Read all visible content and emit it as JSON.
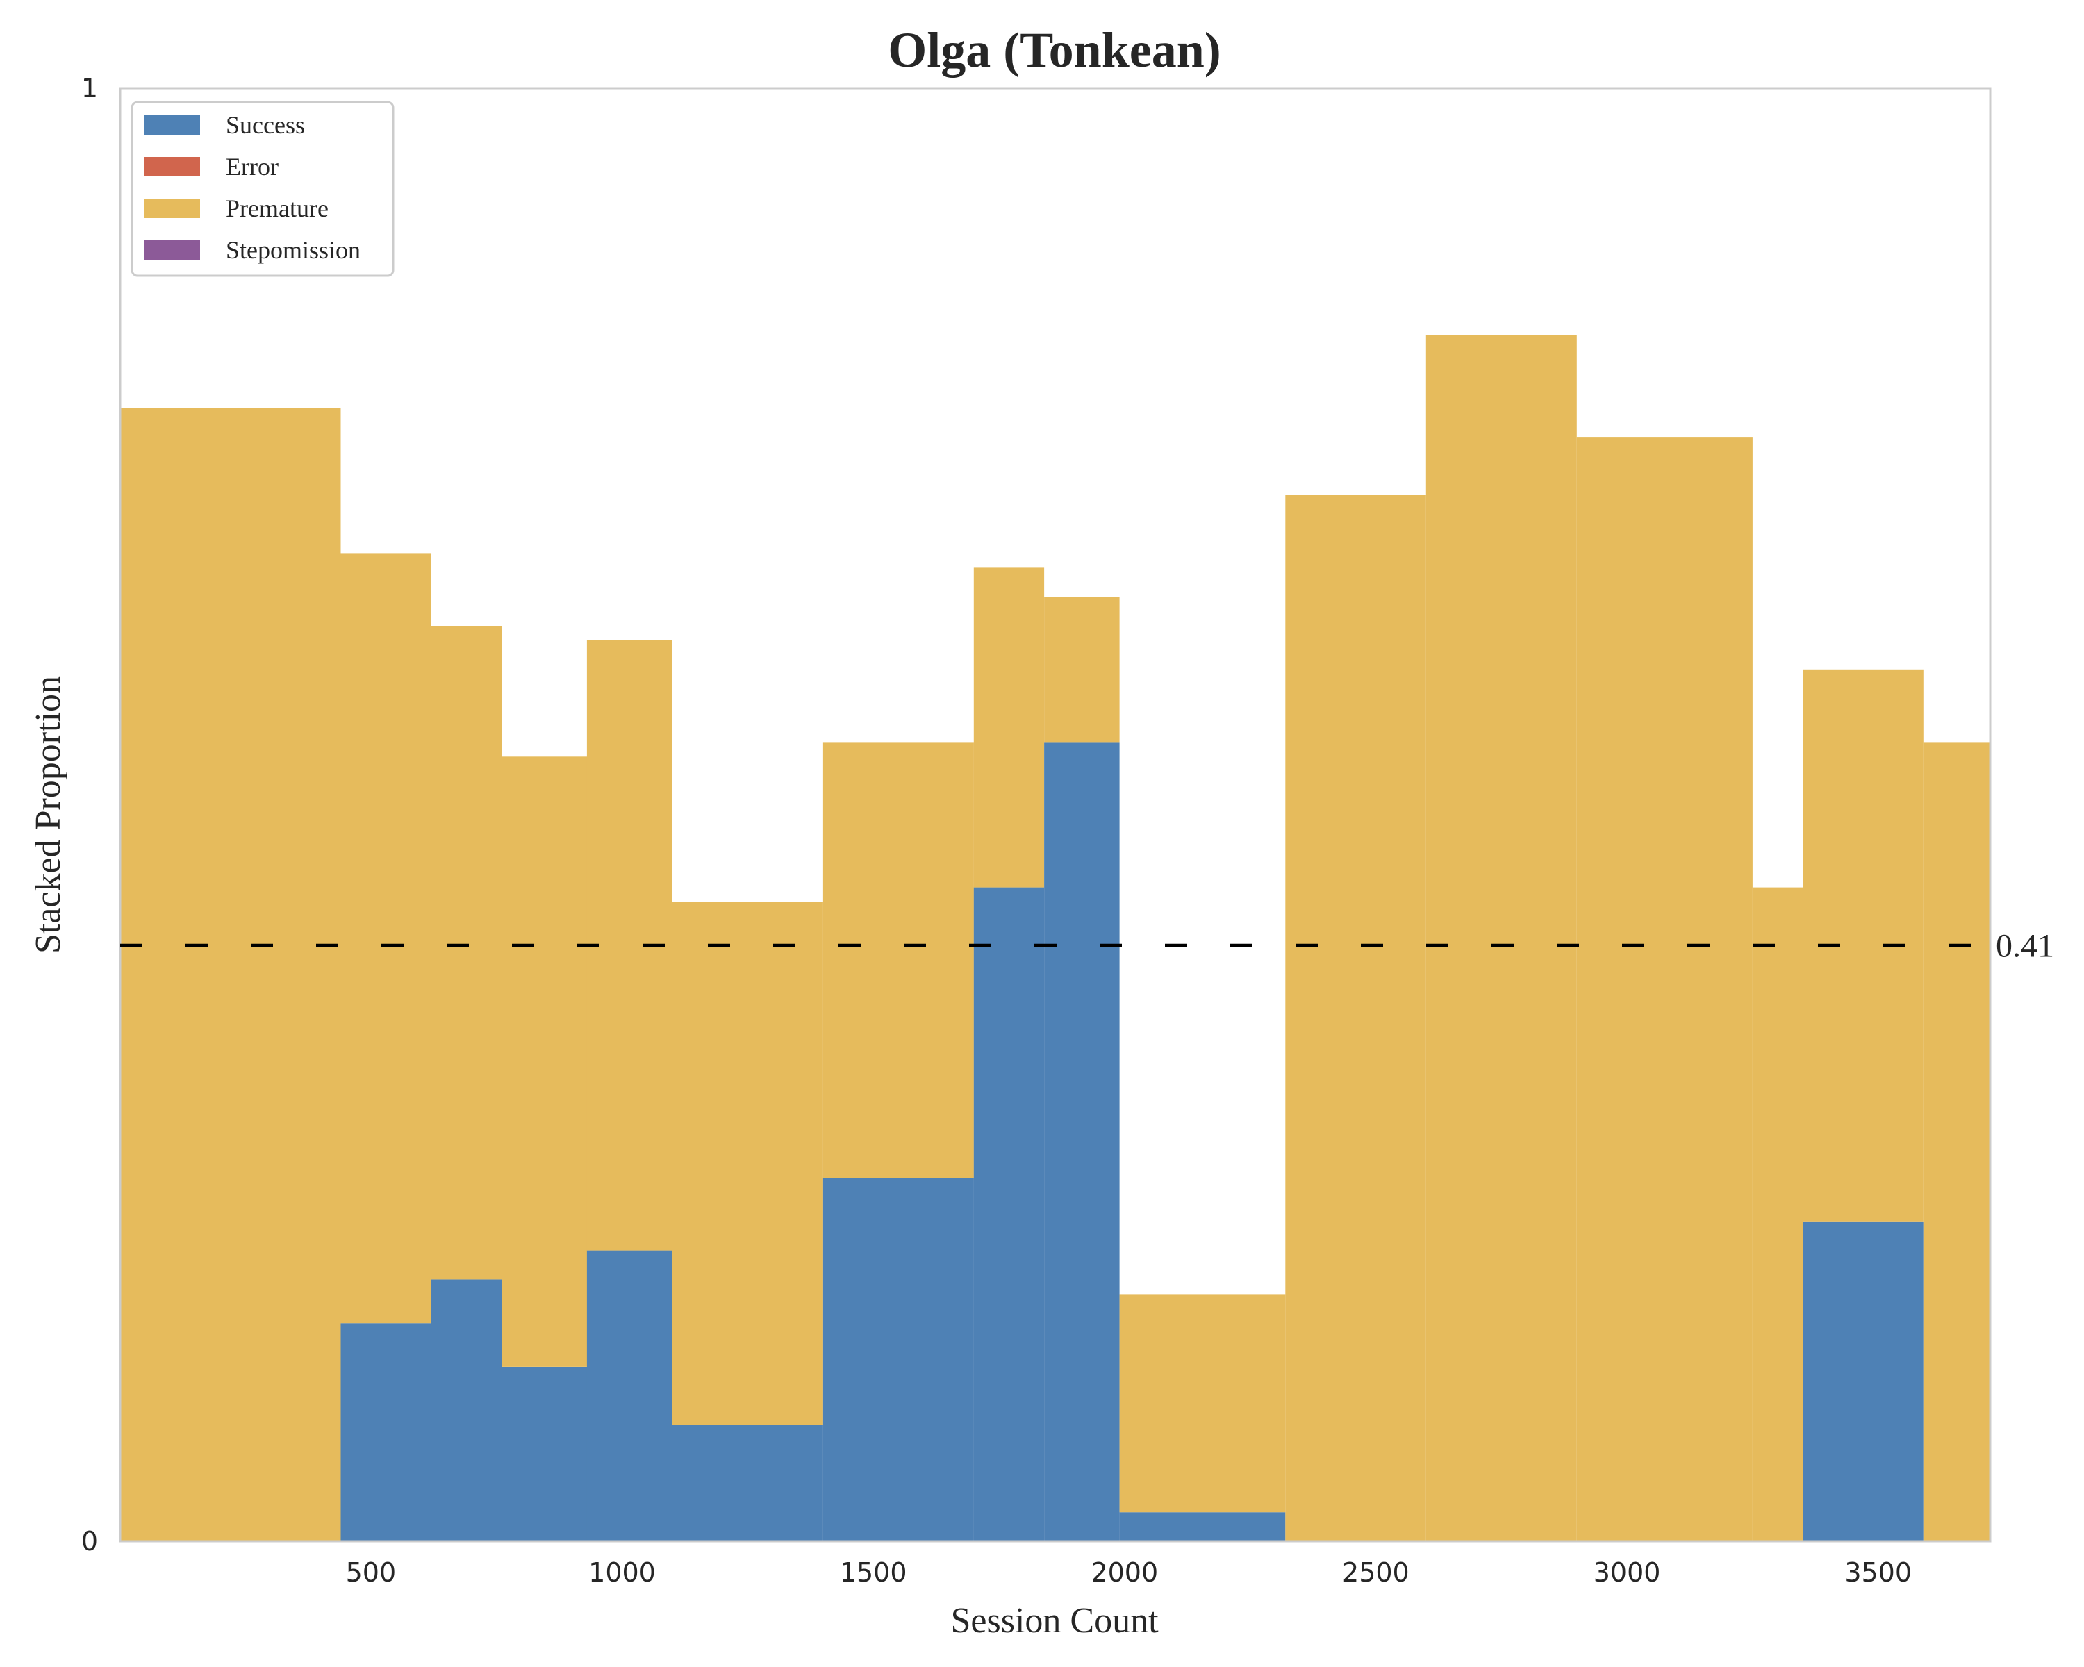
{
  "chart_data": {
    "type": "bar",
    "stacked": true,
    "title": "Olga (Tonkean)",
    "xlabel": "Session Count",
    "ylabel": "Stacked Proportion",
    "xlim": [
      1,
      3723
    ],
    "ylim": [
      0,
      1
    ],
    "x_ticks": [
      500,
      1000,
      1500,
      2000,
      2500,
      3000,
      3500
    ],
    "y_ticks": [
      {
        "value": 0,
        "label": "0"
      },
      {
        "value": 1,
        "label": "1"
      }
    ],
    "grid": false,
    "legend_position": "upper-left",
    "series": [
      {
        "name": "Success",
        "color": "#4e81b5"
      },
      {
        "name": "Error",
        "color": "#d1654d"
      },
      {
        "name": "Premature",
        "color": "#e6bb5c"
      },
      {
        "name": "Stepomission",
        "color": "#8c5a98"
      }
    ],
    "segments": [
      {
        "x_start": 1,
        "x_end": 440,
        "success": 0.0,
        "error": 0.0,
        "premature": 0.78
      },
      {
        "x_start": 440,
        "x_end": 620,
        "success": 0.15,
        "error": 0.0,
        "premature": 0.53
      },
      {
        "x_start": 620,
        "x_end": 760,
        "success": 0.18,
        "error": 0.0,
        "premature": 0.45
      },
      {
        "x_start": 760,
        "x_end": 930,
        "success": 0.12,
        "error": 0.0,
        "premature": 0.42
      },
      {
        "x_start": 930,
        "x_end": 1100,
        "success": 0.2,
        "error": 0.0,
        "premature": 0.42
      },
      {
        "x_start": 1100,
        "x_end": 1400,
        "success": 0.08,
        "error": 0.0,
        "premature": 0.36
      },
      {
        "x_start": 1400,
        "x_end": 1700,
        "success": 0.25,
        "error": 0.0,
        "premature": 0.3
      },
      {
        "x_start": 1700,
        "x_end": 1840,
        "success": 0.45,
        "error": 0.0,
        "premature": 0.22
      },
      {
        "x_start": 1840,
        "x_end": 1990,
        "success": 0.55,
        "error": 0.0,
        "premature": 0.1
      },
      {
        "x_start": 1990,
        "x_end": 2320,
        "success": 0.02,
        "error": 0.0,
        "premature": 0.15
      },
      {
        "x_start": 2320,
        "x_end": 2600,
        "success": 0.0,
        "error": 0.0,
        "premature": 0.72
      },
      {
        "x_start": 2600,
        "x_end": 2900,
        "success": 0.0,
        "error": 0.0,
        "premature": 0.83
      },
      {
        "x_start": 2900,
        "x_end": 3250,
        "success": 0.0,
        "error": 0.0,
        "premature": 0.76
      },
      {
        "x_start": 3250,
        "x_end": 3350,
        "success": 0.0,
        "error": 0.0,
        "premature": 0.45
      },
      {
        "x_start": 3350,
        "x_end": 3590,
        "success": 0.22,
        "error": 0.0,
        "premature": 0.38
      },
      {
        "x_start": 3590,
        "x_end": 3723,
        "success": 0.0,
        "error": 0.0,
        "premature": 0.55
      }
    ],
    "reference_line": {
      "value": 0.41,
      "label": "0.41",
      "style": "dashed",
      "color": "#000000"
    }
  }
}
